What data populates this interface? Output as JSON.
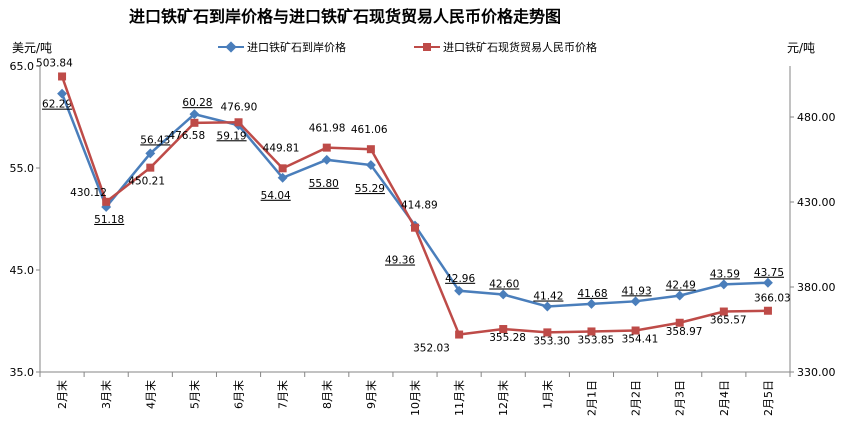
{
  "chart_data": {
    "type": "line",
    "title": "进口铁矿石到岸价格与进口铁矿石现货贸易人民币价格走势图",
    "ylabel_left": "美元/吨",
    "ylabel_right": "元/吨",
    "categories": [
      "2月末",
      "3月末",
      "4月末",
      "5月末",
      "6月末",
      "7月末",
      "8月末",
      "9月末",
      "10月末",
      "11月末",
      "12月末",
      "1月末",
      "2月1日",
      "2月2日",
      "2月3日",
      "2月4日",
      "2月5日"
    ],
    "y_left": {
      "min": 35.0,
      "max": 65.0,
      "ticks": [
        "35.0",
        "45.0",
        "55.0",
        "65.0"
      ]
    },
    "y_right": {
      "min": 330.0,
      "max": 510.0,
      "ticks": [
        "330.00",
        "380.00",
        "430.00",
        "480.00"
      ]
    },
    "grid": false,
    "legend_position": "top",
    "series": [
      {
        "name": "进口铁矿石到岸价格",
        "axis": "left",
        "color": "#4a7ebb",
        "marker": "diamond",
        "values": [
          62.29,
          51.18,
          56.43,
          60.28,
          59.19,
          54.04,
          55.8,
          55.29,
          49.36,
          42.96,
          42.6,
          41.42,
          41.68,
          41.93,
          42.49,
          43.59,
          43.75
        ],
        "labels": [
          "62.29",
          "51.18",
          "56.43",
          "60.28",
          "59.19",
          "54.04",
          "55.80",
          "55.29",
          "49.36",
          "42.96",
          "42.60",
          "41.42",
          "41.68",
          "41.93",
          "42.49",
          "43.59",
          "43.75"
        ]
      },
      {
        "name": "进口铁矿石现货贸易人民币价格",
        "axis": "right",
        "color": "#be4b48",
        "marker": "square",
        "values": [
          503.84,
          430.12,
          450.21,
          476.58,
          476.9,
          449.81,
          461.98,
          461.06,
          414.89,
          352.03,
          355.28,
          353.3,
          353.85,
          354.41,
          358.97,
          365.57,
          366.03
        ],
        "labels": [
          "503.84",
          "430.12",
          "450.21",
          "476.58",
          "476.90",
          "449.81",
          "461.98",
          "461.06",
          "414.89",
          "352.03",
          "355.28",
          "353.30",
          "353.85",
          "354.41",
          "358.97",
          "365.57",
          "366.03"
        ]
      }
    ]
  }
}
